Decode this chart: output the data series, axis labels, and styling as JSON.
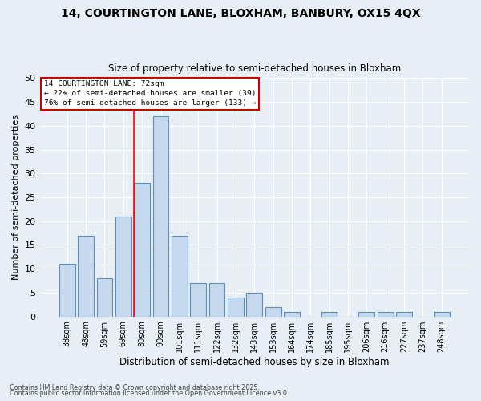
{
  "title1": "14, COURTINGTON LANE, BLOXHAM, BANBURY, OX15 4QX",
  "title2": "Size of property relative to semi-detached houses in Bloxham",
  "xlabel": "Distribution of semi-detached houses by size in Bloxham",
  "ylabel": "Number of semi-detached properties",
  "categories": [
    "38sqm",
    "48sqm",
    "59sqm",
    "69sqm",
    "80sqm",
    "90sqm",
    "101sqm",
    "111sqm",
    "122sqm",
    "132sqm",
    "143sqm",
    "153sqm",
    "164sqm",
    "174sqm",
    "185sqm",
    "195sqm",
    "206sqm",
    "216sqm",
    "227sqm",
    "237sqm",
    "248sqm"
  ],
  "values": [
    11,
    17,
    8,
    21,
    28,
    42,
    17,
    7,
    7,
    4,
    5,
    2,
    1,
    0,
    1,
    0,
    1,
    1,
    1,
    0,
    1
  ],
  "bar_color": "#c5d8ed",
  "bar_edge_color": "#5a8fc0",
  "background_color": "#e8eef5",
  "grid_color": "#ffffff",
  "annotation_title": "14 COURTINGTON LANE: 72sqm",
  "annotation_line1": "← 22% of semi-detached houses are smaller (39)",
  "annotation_line2": "76% of semi-detached houses are larger (133) →",
  "annotation_box_color": "#ffffff",
  "annotation_box_edge": "#cc0000",
  "red_line_x": 3.55,
  "ylim": [
    0,
    50
  ],
  "yticks": [
    0,
    5,
    10,
    15,
    20,
    25,
    30,
    35,
    40,
    45,
    50
  ],
  "footer1": "Contains HM Land Registry data © Crown copyright and database right 2025.",
  "footer2": "Contains public sector information licensed under the Open Government Licence v3.0."
}
